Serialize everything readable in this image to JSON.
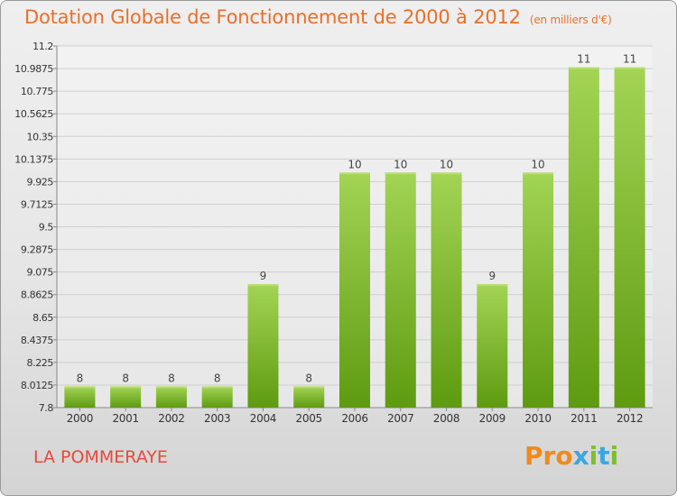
{
  "header": {
    "title": "Dotation Globale de Fonctionnement de 2000 à 2012",
    "unit": "(en milliers d'€)"
  },
  "footer": {
    "city": "LA POMMERAYE",
    "logo": "Proxiti"
  },
  "colors": {
    "title": "#e8702a",
    "city": "#e64a3c",
    "bar_light": "#9dd14f",
    "bar_dark": "#5f9d12",
    "logo_orange": "#f08a1c",
    "logo_blue": "#3aa8de",
    "logo_green": "#7cbf2d"
  },
  "chart_data": {
    "type": "bar",
    "categories": [
      "2000",
      "2001",
      "2002",
      "2003",
      "2004",
      "2005",
      "2006",
      "2007",
      "2008",
      "2009",
      "2010",
      "2011",
      "2012"
    ],
    "values": [
      8,
      8,
      8,
      8,
      9,
      8,
      10,
      10,
      10,
      9,
      10,
      11,
      11
    ],
    "data_labels": [
      "8",
      "8",
      "8",
      "8",
      "9",
      "8",
      "10",
      "10",
      "10",
      "9",
      "10",
      "11",
      "11"
    ],
    "bar_values": [
      8.0,
      8.0,
      8.0,
      8.0,
      8.96,
      8.0,
      10.01,
      10.01,
      10.01,
      8.96,
      10.01,
      11.0,
      11.0
    ],
    "yticks": [
      "7.8",
      "8.0125",
      "8.225",
      "8.4375",
      "8.65",
      "8.8625",
      "9.075",
      "9.2875",
      "9.5",
      "9.7125",
      "9.925",
      "10.1375",
      "10.35",
      "10.5625",
      "10.775",
      "10.9875",
      "11.2"
    ],
    "ylim": [
      7.8,
      11.2
    ],
    "xlabel": "",
    "ylabel": "",
    "grid": true
  }
}
